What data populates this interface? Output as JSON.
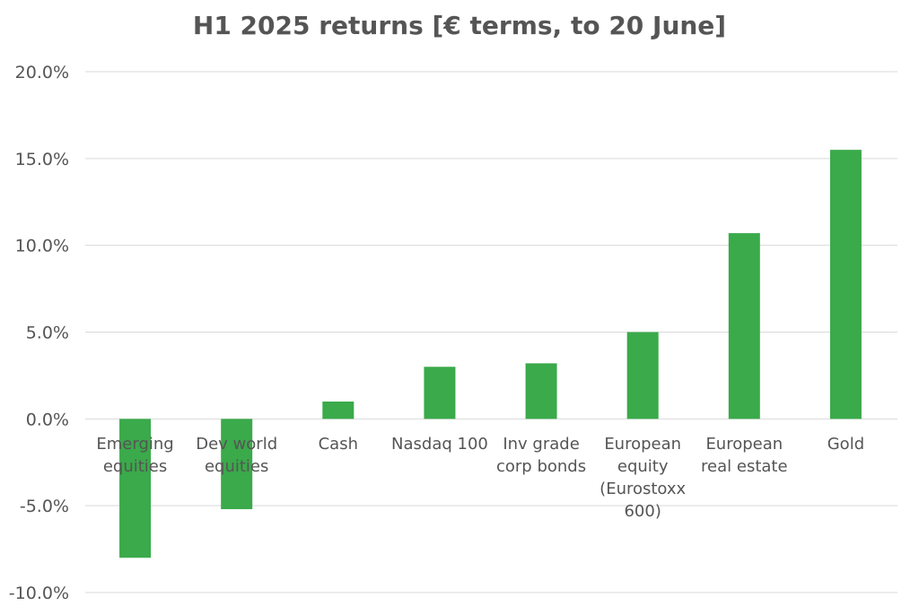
{
  "chart_data": {
    "type": "bar",
    "title": "H1 2025 returns [€ terms, to 20 June]",
    "xlabel": "",
    "ylabel": "",
    "categories": [
      [
        "Emerging",
        "equities"
      ],
      [
        "Dev world",
        "equities"
      ],
      [
        "Cash"
      ],
      [
        "Nasdaq 100"
      ],
      [
        "Inv grade",
        "corp bonds"
      ],
      [
        "European",
        "equity",
        "(Eurostoxx",
        "600)"
      ],
      [
        "European",
        "real estate"
      ],
      [
        "Gold"
      ]
    ],
    "values": [
      -8.0,
      -5.2,
      1.0,
      3.0,
      3.2,
      5.0,
      10.7,
      15.5
    ],
    "ylim": [
      -10,
      20
    ],
    "yticks": [
      "-10.0%",
      "-5.0%",
      "0.0%",
      "5.0%",
      "10.0%",
      "15.0%",
      "20.0%"
    ],
    "ytick_values": [
      -10,
      -5,
      0,
      5,
      10,
      15,
      20
    ],
    "grid": true,
    "legend": "none",
    "bar_color": "#3aaa4a",
    "grid_color": "#d9d9d9",
    "text_color": "#555555"
  }
}
